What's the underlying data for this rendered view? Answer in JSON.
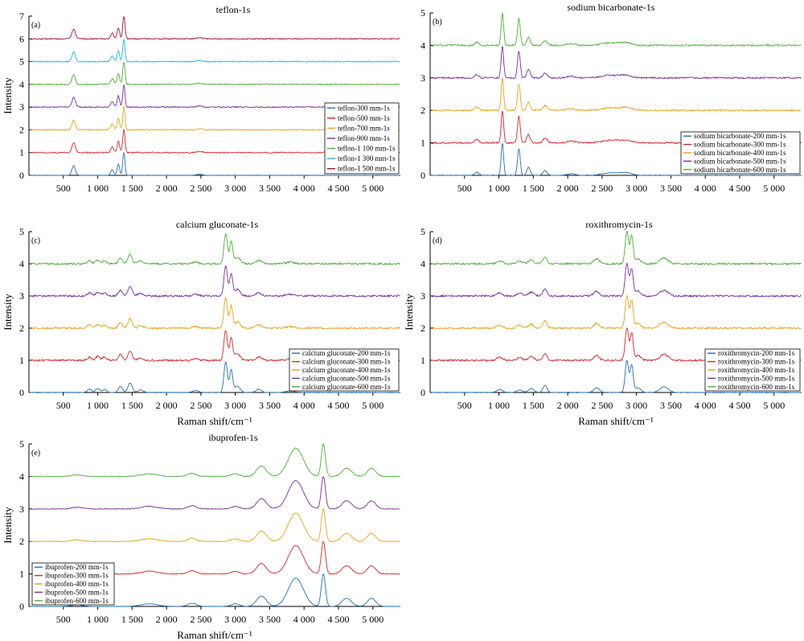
{
  "colors": [
    "#1f6fb4",
    "#d62728",
    "#e8a317",
    "#7b2d9b",
    "#4caf3a",
    "#1fb3e0",
    "#a0182a"
  ],
  "x_ticks": [
    "500",
    "1 000",
    "1 500",
    "2 000",
    "2 500",
    "3 000",
    "3 500",
    "4 000",
    "4 500",
    "5 000"
  ],
  "chart_data": [
    {
      "id": "a",
      "panel_label": "(a)",
      "title": "teflon-1s",
      "type": "line",
      "xlabel": "",
      "ylabel": "Intensity",
      "xlim": [
        0,
        5400
      ],
      "ylim": [
        0,
        7
      ],
      "y_ticks": [
        "0",
        "1",
        "2",
        "3",
        "4",
        "5",
        "6",
        "7"
      ],
      "legend": "bottom-right",
      "offsets": [
        0,
        1,
        2,
        3,
        4,
        5,
        6
      ],
      "peaks": [
        [
          650,
          0.42,
          25
        ],
        [
          1210,
          0.25,
          22
        ],
        [
          1300,
          0.5,
          18
        ],
        [
          1380,
          1.0,
          16
        ],
        [
          2480,
          0.05,
          40
        ]
      ],
      "noise": 0.025,
      "series": [
        {
          "name": "teflon-300 mm-1s",
          "values": [
            [
              380,
              0.01
            ],
            [
              650,
              0.42
            ],
            [
              1120,
              0.02
            ],
            [
              1210,
              0.25
            ],
            [
              1300,
              0.5
            ],
            [
              1380,
              1.0
            ],
            [
              2480,
              0.05
            ]
          ]
        },
        {
          "name": "teflon-500 mm-1s",
          "values": [
            [
              650,
              0.42
            ],
            [
              1210,
              0.25
            ],
            [
              1300,
              0.5
            ],
            [
              1380,
              1.0
            ],
            [
              2480,
              0.05
            ]
          ]
        },
        {
          "name": "teflon-700 mm-1s",
          "values": [
            [
              650,
              0.42
            ],
            [
              1210,
              0.25
            ],
            [
              1300,
              0.5
            ],
            [
              1380,
              1.0
            ],
            [
              2480,
              0.05
            ]
          ]
        },
        {
          "name": "teflon-900 mm-1s",
          "values": [
            [
              650,
              0.42
            ],
            [
              1210,
              0.25
            ],
            [
              1300,
              0.5
            ],
            [
              1380,
              1.0
            ],
            [
              2480,
              0.05
            ]
          ]
        },
        {
          "name": "teflon-1 100 mm-1s",
          "values": [
            [
              650,
              0.42
            ],
            [
              1210,
              0.25
            ],
            [
              1300,
              0.5
            ],
            [
              1380,
              1.0
            ],
            [
              2480,
              0.05
            ]
          ]
        },
        {
          "name": "teflon-1 300 mm-1s",
          "values": [
            [
              650,
              0.42
            ],
            [
              1210,
              0.25
            ],
            [
              1300,
              0.5
            ],
            [
              1380,
              1.0
            ],
            [
              2480,
              0.05
            ]
          ]
        },
        {
          "name": "teflon-1 500 mm-1s",
          "values": [
            [
              650,
              0.42
            ],
            [
              1210,
              0.25
            ],
            [
              1300,
              0.5
            ],
            [
              1380,
              1.0
            ],
            [
              2480,
              0.05
            ]
          ]
        }
      ]
    },
    {
      "id": "b",
      "panel_label": "(b)",
      "title": "sodium bicarbonate-1s",
      "type": "line",
      "xlabel": "",
      "ylabel": "",
      "xlim": [
        0,
        5400
      ],
      "ylim": [
        0,
        5
      ],
      "y_ticks": [
        "0",
        "1",
        "2",
        "3",
        "4",
        "5"
      ],
      "legend": "bottom-right",
      "offsets": [
        0,
        1,
        2,
        3,
        4
      ],
      "peaks": [
        [
          680,
          0.1,
          30
        ],
        [
          1050,
          1.0,
          18
        ],
        [
          1290,
          0.82,
          20
        ],
        [
          1430,
          0.25,
          25
        ],
        [
          1670,
          0.15,
          30
        ],
        [
          2050,
          0.05,
          60
        ],
        [
          2620,
          0.08,
          120
        ],
        [
          2850,
          0.08,
          80
        ]
      ],
      "noise": 0.025,
      "series": [
        {
          "name": "sodium bicarbonate-200 mm-1s",
          "values": [
            [
              680,
              0.1
            ],
            [
              1050,
              1.0
            ],
            [
              1290,
              0.82
            ],
            [
              1430,
              0.25
            ],
            [
              1670,
              0.15
            ],
            [
              2620,
              0.08
            ],
            [
              2850,
              0.08
            ]
          ]
        },
        {
          "name": "sodium bicarbonate-300 mm-1s",
          "values": [
            [
              680,
              0.1
            ],
            [
              1050,
              1.0
            ],
            [
              1290,
              0.82
            ],
            [
              1430,
              0.25
            ],
            [
              1670,
              0.15
            ]
          ]
        },
        {
          "name": "sodium bicarbonate-400 mm-1s",
          "values": [
            [
              680,
              0.1
            ],
            [
              1050,
              1.0
            ],
            [
              1290,
              0.82
            ],
            [
              1430,
              0.25
            ],
            [
              1670,
              0.15
            ]
          ]
        },
        {
          "name": "sodium bicarbonate-500 mm-1s",
          "values": [
            [
              680,
              0.1
            ],
            [
              1050,
              1.0
            ],
            [
              1290,
              0.82
            ],
            [
              1430,
              0.25
            ],
            [
              1670,
              0.15
            ]
          ]
        },
        {
          "name": "sodium bicarbonate-600 mm-1s",
          "values": [
            [
              680,
              0.1
            ],
            [
              1050,
              1.0
            ],
            [
              1290,
              0.82
            ],
            [
              1430,
              0.25
            ],
            [
              1670,
              0.15
            ]
          ]
        }
      ]
    },
    {
      "id": "c",
      "panel_label": "(c)",
      "title": "calcium gluconate-1s",
      "type": "line",
      "xlabel": "Raman shift/cm⁻¹",
      "ylabel": "Intensity",
      "xlim": [
        0,
        5400
      ],
      "ylim": [
        0,
        5
      ],
      "y_ticks": [
        "0",
        "1",
        "2",
        "3",
        "4",
        "5"
      ],
      "legend": "bottom-right",
      "offsets": [
        0,
        1,
        2,
        3,
        4
      ],
      "peaks": [
        [
          880,
          0.1,
          30
        ],
        [
          1000,
          0.12,
          30
        ],
        [
          1100,
          0.1,
          30
        ],
        [
          1330,
          0.18,
          30
        ],
        [
          1470,
          0.3,
          30
        ],
        [
          1620,
          0.08,
          40
        ],
        [
          2420,
          0.06,
          40
        ],
        [
          2860,
          0.95,
          25
        ],
        [
          2940,
          0.7,
          22
        ],
        [
          3030,
          0.2,
          40
        ],
        [
          3340,
          0.1,
          40
        ],
        [
          3800,
          0.05,
          60
        ]
      ],
      "noise": 0.03,
      "series": [
        {
          "name": "calcium gluconate-200 mm-1s",
          "values": [
            [
              1000,
              0.12
            ],
            [
              1470,
              0.3
            ],
            [
              2420,
              0.06
            ],
            [
              2860,
              0.95
            ],
            [
              2940,
              0.7
            ],
            [
              3030,
              0.2
            ],
            [
              3340,
              0.1
            ]
          ]
        },
        {
          "name": "calcium gluconate-300 mm-1s",
          "values": [
            [
              1000,
              0.12
            ],
            [
              1470,
              0.3
            ],
            [
              2860,
              0.95
            ],
            [
              2940,
              0.7
            ]
          ]
        },
        {
          "name": "calcium gluconate-400 mm-1s",
          "values": [
            [
              1000,
              0.12
            ],
            [
              1470,
              0.3
            ],
            [
              2860,
              0.95
            ],
            [
              2940,
              0.7
            ]
          ]
        },
        {
          "name": "calcium gluconate-500 mm-1s",
          "values": [
            [
              1000,
              0.12
            ],
            [
              1470,
              0.3
            ],
            [
              2860,
              0.95
            ],
            [
              2940,
              0.7
            ]
          ]
        },
        {
          "name": "calcium gluconate-600 mm-1s",
          "values": [
            [
              1000,
              0.12
            ],
            [
              1470,
              0.3
            ],
            [
              2860,
              0.95
            ],
            [
              2940,
              0.7
            ]
          ]
        }
      ]
    },
    {
      "id": "d",
      "panel_label": "(d)",
      "title": "roxithromycin-1s",
      "type": "line",
      "xlabel": "Raman shift/cm⁻¹",
      "ylabel": "Intensity",
      "xlim": [
        0,
        5400
      ],
      "ylim": [
        0,
        5
      ],
      "y_ticks": [
        "0",
        "1",
        "2",
        "3",
        "4",
        "5"
      ],
      "legend": "bottom-right",
      "offsets": [
        0,
        1,
        2,
        3,
        4
      ],
      "peaks": [
        [
          1010,
          0.1,
          40
        ],
        [
          1300,
          0.08,
          40
        ],
        [
          1470,
          0.12,
          40
        ],
        [
          1670,
          0.22,
          30
        ],
        [
          2420,
          0.15,
          40
        ],
        [
          2860,
          1.0,
          25
        ],
        [
          2930,
          0.85,
          22
        ],
        [
          3020,
          0.15,
          40
        ],
        [
          3400,
          0.18,
          60
        ]
      ],
      "noise": 0.03,
      "series": [
        {
          "name": "roxithromycin-200 mm-1s",
          "values": [
            [
              1010,
              0.1
            ],
            [
              1470,
              0.12
            ],
            [
              1670,
              0.22
            ],
            [
              2420,
              0.15
            ],
            [
              2860,
              1.0
            ],
            [
              2930,
              0.85
            ],
            [
              3400,
              0.18
            ]
          ]
        },
        {
          "name": "roxithromycin-300 mm-1s",
          "values": [
            [
              1670,
              0.22
            ],
            [
              2860,
              1.0
            ],
            [
              2930,
              0.85
            ],
            [
              3400,
              0.18
            ]
          ]
        },
        {
          "name": "roxithromycin-400 mm-1s",
          "values": [
            [
              1670,
              0.22
            ],
            [
              2860,
              1.0
            ],
            [
              2930,
              0.85
            ],
            [
              3400,
              0.18
            ]
          ]
        },
        {
          "name": "roxithromycin-500 mm-1s",
          "values": [
            [
              1670,
              0.22
            ],
            [
              2860,
              1.0
            ],
            [
              2930,
              0.85
            ],
            [
              3400,
              0.18
            ]
          ]
        },
        {
          "name": "roxithromycin-600 mm-1s",
          "values": [
            [
              1670,
              0.22
            ],
            [
              2860,
              1.0
            ],
            [
              2930,
              0.85
            ],
            [
              3400,
              0.18
            ]
          ]
        }
      ]
    },
    {
      "id": "e",
      "panel_label": "(e)",
      "title": "ibuprofen-1s",
      "type": "line",
      "xlabel": "Raman shift/cm⁻¹",
      "ylabel": "Intensity",
      "xlim": [
        0,
        5400
      ],
      "ylim": [
        0,
        5
      ],
      "y_ticks": [
        "0",
        "1",
        "2",
        "3",
        "4",
        "5"
      ],
      "legend": "bottom-left",
      "offsets": [
        0,
        1,
        2,
        3,
        4
      ],
      "peaks": [
        [
          700,
          0.05,
          80
        ],
        [
          1750,
          0.08,
          120
        ],
        [
          2370,
          0.1,
          60
        ],
        [
          3000,
          0.08,
          60
        ],
        [
          3380,
          0.32,
          70
        ],
        [
          3880,
          0.87,
          110
        ],
        [
          4280,
          1.0,
          30
        ],
        [
          4620,
          0.25,
          70
        ],
        [
          4980,
          0.25,
          60
        ]
      ],
      "noise": 0.012,
      "series": [
        {
          "name": "ibuprofen-200 mm-1s",
          "values": [
            [
              700,
              0.05
            ],
            [
              1750,
              0.08
            ],
            [
              2370,
              0.1
            ],
            [
              3380,
              0.32
            ],
            [
              3880,
              0.87
            ],
            [
              4280,
              1.0
            ],
            [
              4620,
              0.25
            ],
            [
              4980,
              0.25
            ]
          ]
        },
        {
          "name": "ibuprofen-300 mm-1s",
          "values": [
            [
              3380,
              0.32
            ],
            [
              3880,
              0.87
            ],
            [
              4280,
              1.0
            ],
            [
              4620,
              0.25
            ],
            [
              4980,
              0.25
            ]
          ]
        },
        {
          "name": "ibuprofen-400 mm-1s",
          "values": [
            [
              3380,
              0.32
            ],
            [
              3880,
              0.87
            ],
            [
              4280,
              1.0
            ],
            [
              4620,
              0.25
            ],
            [
              4980,
              0.25
            ]
          ]
        },
        {
          "name": "ibuprofen-500 mm-1s",
          "values": [
            [
              3380,
              0.32
            ],
            [
              3880,
              0.87
            ],
            [
              4280,
              1.0
            ],
            [
              4620,
              0.25
            ],
            [
              4980,
              0.25
            ]
          ]
        },
        {
          "name": "ibuprofen-600 mm-1s",
          "values": [
            [
              3380,
              0.32
            ],
            [
              3880,
              0.87
            ],
            [
              4280,
              1.0
            ],
            [
              4620,
              0.25
            ],
            [
              4980,
              0.25
            ]
          ]
        }
      ]
    }
  ]
}
